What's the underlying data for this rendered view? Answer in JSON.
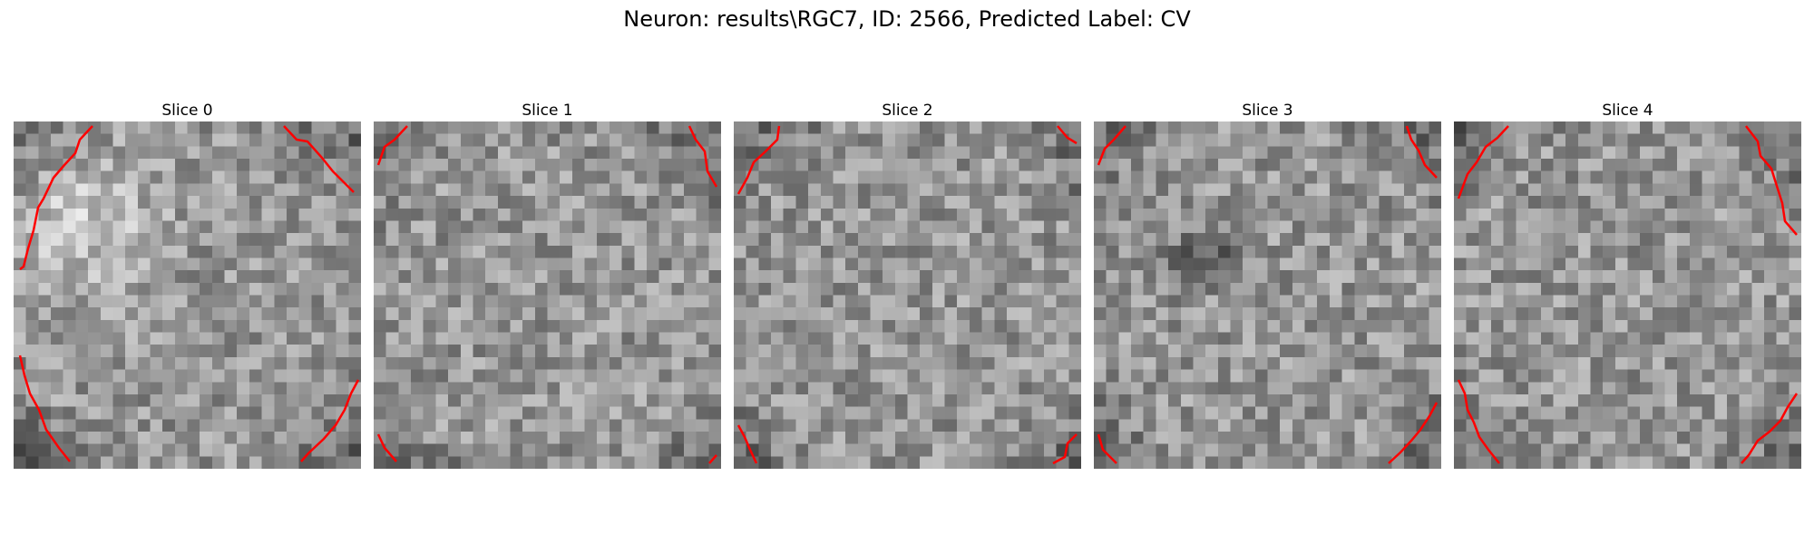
{
  "figure": {
    "title": "Neuron: results\\RGC7, ID: 2566, Predicted Label: CV"
  },
  "panels": [
    {
      "title": "Slice 0"
    },
    {
      "title": "Slice 1"
    },
    {
      "title": "Slice 2"
    },
    {
      "title": "Slice 3"
    },
    {
      "title": "Slice 4"
    }
  ],
  "colors": {
    "contour": "#ff0000",
    "background": "#ffffff"
  }
}
